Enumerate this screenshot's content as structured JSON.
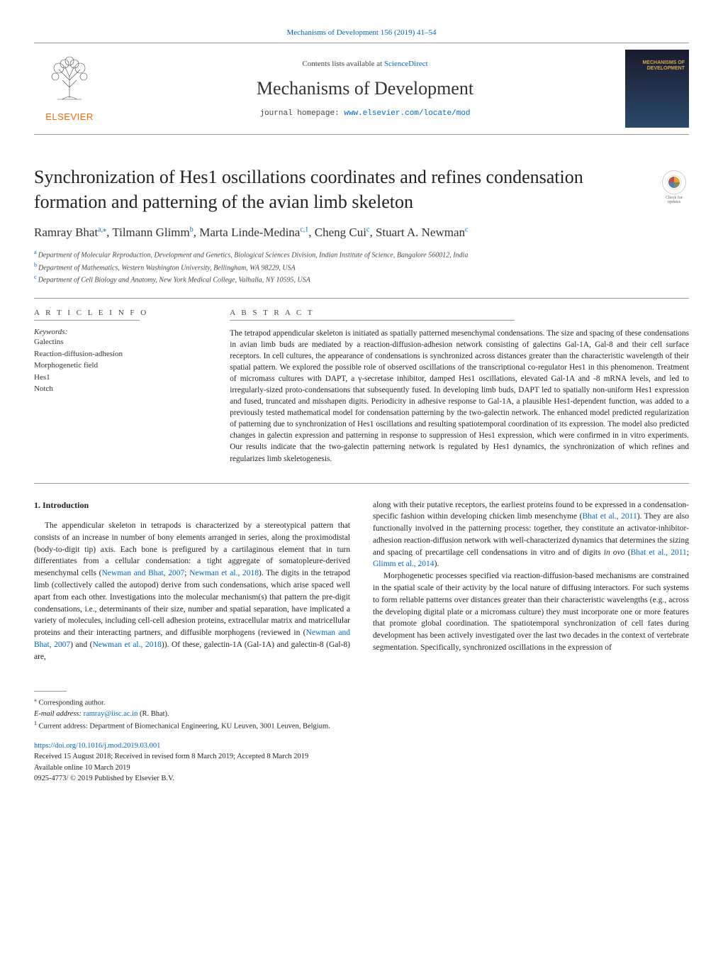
{
  "top_citation": "Mechanisms of Development 156 (2019) 41–54",
  "header": {
    "contents_prefix": "Contents lists available at ",
    "contents_link": "ScienceDirect",
    "journal_name": "Mechanisms of Development",
    "homepage_prefix": "journal homepage: ",
    "homepage_url": "www.elsevier.com/locate/mod",
    "elsevier": "ELSEVIER",
    "cover_line1": "MECHANISMS OF",
    "cover_line2": "DEVELOPMENT"
  },
  "check_badge": {
    "line1": "Check for",
    "line2": "updates"
  },
  "title": "Synchronization of Hes1 oscillations coordinates and refines condensation formation and patterning of the avian limb skeleton",
  "authors_html": "Ramray Bhat<sup>a,</sup><sup class=\"corr\">⁎</sup>, Tilmann Glimm<sup>b</sup>, Marta Linde-Medina<sup>c,1</sup>, Cheng Cui<sup>c</sup>, Stuart A. Newman<sup>c</sup>",
  "affiliations": {
    "a": "Department of Molecular Reproduction, Development and Genetics, Biological Sciences Division, Indian Institute of Science, Bangalore 560012, India",
    "b": "Department of Mathematics, Western Washington University, Bellingham, WA 98229, USA",
    "c": "Department of Cell Biology and Anatomy, New York Medical College, Valhalla, NY 10595, USA"
  },
  "info": {
    "head": "A R T I C L E  I N F O",
    "keywords_label": "Keywords:",
    "keywords": [
      "Galectins",
      "Reaction-diffusion-adhesion",
      "Morphogenetic field",
      "Hes1",
      "Notch"
    ]
  },
  "abstract": {
    "head": "A B S T R A C T",
    "text": "The tetrapod appendicular skeleton is initiated as spatially patterned mesenchymal condensations. The size and spacing of these condensations in avian limb buds are mediated by a reaction-diffusion-adhesion network consisting of galectins Gal-1A, Gal-8 and their cell surface receptors. In cell cultures, the appearance of condensations is synchronized across distances greater than the characteristic wavelength of their spatial pattern. We explored the possible role of observed oscillations of the transcriptional co-regulator Hes1 in this phenomenon. Treatment of micromass cultures with DAPT, a γ-secretase inhibitor, damped Hes1 oscillations, elevated Gal-1A and -8 mRNA levels, and led to irregularly-sized proto-condensations that subsequently fused. In developing limb buds, DAPT led to spatially non-uniform Hes1 expression and fused, truncated and misshapen digits. Periodicity in adhesive response to Gal-1A, a plausible Hes1-dependent function, was added to a previously tested mathematical model for condensation patterning by the two-galectin network. The enhanced model predicted regularization of patterning due to synchronization of Hes1 oscillations and resulting spatiotemporal coordination of its expression. The model also predicted changes in galectin expression and patterning in response to suppression of Hes1 expression, which were confirmed in in vitro experiments. Our results indicate that the two-galectin patterning network is regulated by Hes1 dynamics, the synchronization of which refines and regularizes limb skeletogenesis."
  },
  "body": {
    "intro_head": "1. Introduction",
    "left_para": "The appendicular skeleton in tetrapods is characterized by a stereotypical pattern that consists of an increase in number of bony elements arranged in series, along the proximodistal (body-to-digit tip) axis. Each bone is prefigured by a cartilaginous element that in turn differentiates from a cellular condensation: a tight aggregate of somatopleure-derived mesenchymal cells (<span class=\"ref-link\">Newman and Bhat, 2007</span>; <span class=\"ref-link\">Newman et al., 2018</span>). The digits in the tetrapod limb (collectively called the autopod) derive from such condensations, which arise spaced well apart from each other. Investigations into the molecular mechanism(s) that pattern the pre-digit condensations, i.e., determinants of their size, number and spatial separation, have implicated a variety of molecules, including cell-cell adhesion proteins, extracellular matrix and matricellular proteins and their interacting partners, and diffusible morphogens (reviewed in (<span class=\"ref-link\">Newman and Bhat, 2007</span>) and (<span class=\"ref-link\">Newman et al., 2018</span>)). Of these, galectin-1A (Gal-1A) and galectin-8 (Gal-8) are,",
    "right_para1": "along with their putative receptors, the earliest proteins found to be expressed in a condensation-specific fashion within developing chicken limb mesenchyme (<span class=\"ref-link\">Bhat et al., 2011</span>). They are also functionally involved in the patterning process: together, they constitute an activator-inhibitor-adhesion reaction-diffusion network with well-characterized dynamics that determines the sizing and spacing of precartilage cell condensations in vitro and of digits <i>in ovo</i> (<span class=\"ref-link\">Bhat et al., 2011</span>; <span class=\"ref-link\">Glimm et al., 2014</span>).",
    "right_para2": "Morphogenetic processes specified via reaction-diffusion-based mechanisms are constrained in the spatial scale of their activity by the local nature of diffusing interactors. For such systems to form reliable patterns over distances greater than their characteristic wavelengths (e.g., across the developing digital plate or a micromass culture) they must incorporate one or more features that promote global coordination. The spatiotemporal synchronization of cell fates during development has been actively investigated over the last two decades in the context of vertebrate segmentation. Specifically, synchronized oscillations in the expression of"
  },
  "footnotes": {
    "corr": "Corresponding author.",
    "email_label": "E-mail address:",
    "email": "ramray@iisc.ac.in",
    "email_name": "(R. Bhat).",
    "note1": "Current address: Department of Biomechanical Engineering, KU Leuven, 3001 Leuven, Belgium."
  },
  "doi": {
    "url": "https://doi.org/10.1016/j.mod.2019.03.001",
    "received": "Received 15 August 2018; Received in revised form 8 March 2019; Accepted 8 March 2019",
    "available": "Available online 10 March 2019",
    "copyright": "0925-4773/ © 2019 Published by Elsevier B.V."
  },
  "colors": {
    "link": "#0066cc",
    "elsevier_orange": "#ff6600",
    "rule": "#999999",
    "text": "#222222"
  }
}
